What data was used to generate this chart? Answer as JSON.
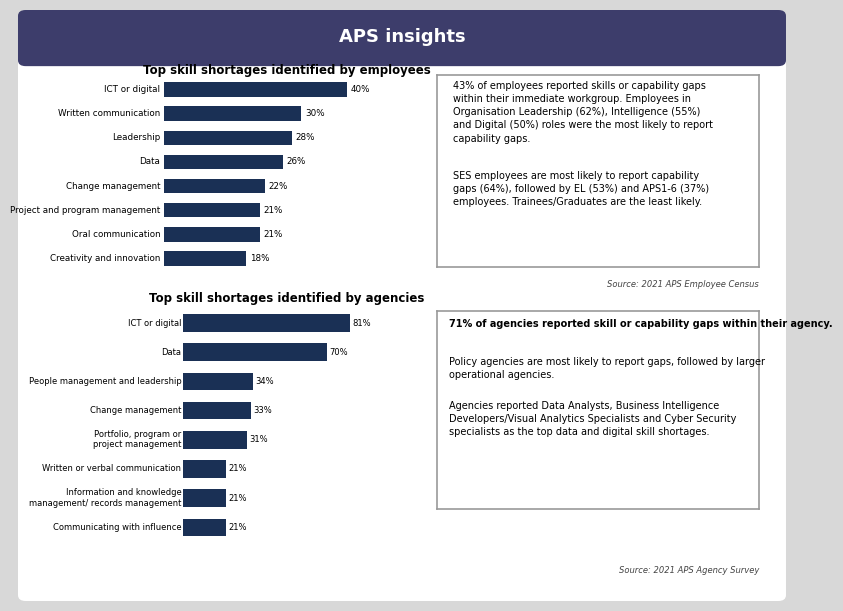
{
  "title": "APS insights",
  "title_bg_color": "#3d3d6b",
  "title_text_color": "#ffffff",
  "bar_color": "#1a3055",
  "section1_title": "Top skill shortages identified by employees",
  "emp_categories": [
    "Creativity and innovation",
    "Oral communication",
    "Project and program management",
    "Change management",
    "Data",
    "Leadership",
    "Written communication",
    "ICT or digital"
  ],
  "emp_values": [
    18,
    21,
    21,
    22,
    26,
    28,
    30,
    40
  ],
  "emp_labels": [
    "18%",
    "21%",
    "21%",
    "22%",
    "26%",
    "28%",
    "30%",
    "40%"
  ],
  "emp_note_line1": "43% of employees reported skills or capability gaps\nwithin their immediate workgroup. Employees in\nOrganisation Leadership (62%), Intelligence (55%)\nand Digital (50%) roles were the most likely to report\ncapability gaps.",
  "emp_note_line2": "SES employees are most likely to report capability\ngaps (64%), followed by EL (53%) and APS1-6 (37%)\nemployees. Trainees/Graduates are the least likely.",
  "emp_source": "Source: 2021 APS Employee Census",
  "section2_title": "Top skill shortages identified by agencies",
  "agency_categories": [
    "Communicating with influence",
    "Information and knowledge\nmanagement/ records management",
    "Written or verbal communication",
    "Portfolio, program or\nproject management",
    "Change management",
    "People management and leadership",
    "Data",
    "ICT or digital"
  ],
  "agency_values": [
    21,
    21,
    21,
    31,
    33,
    34,
    70,
    81
  ],
  "agency_labels": [
    "21%",
    "21%",
    "21%",
    "31%",
    "33%",
    "34%",
    "70%",
    "81%"
  ],
  "agency_note_line1": "71% of agencies reported skill or capability gaps within their agency.",
  "agency_note_line2": "Policy agencies are most likely to report gaps, followed by larger\noperational agencies.",
  "agency_note_line3": "Agencies reported Data Analysts, Business Intelligence\nDevelopers/Visual Analytics Specialists and Cyber Security\nspecialists as the top data and digital skill shortages.",
  "agency_source": "Source: 2021 APS Agency Survey",
  "outer_bg": "#d8d8d8",
  "box_bg": "#ffffff",
  "box_border": "#999999"
}
